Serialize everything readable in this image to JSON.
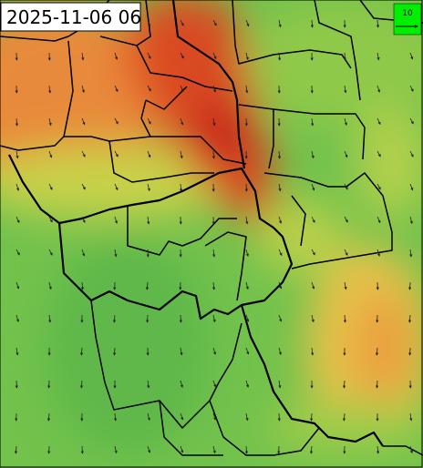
{
  "timestamp": "2025-11-06 06",
  "legend": {
    "label": "10"
  }
}
